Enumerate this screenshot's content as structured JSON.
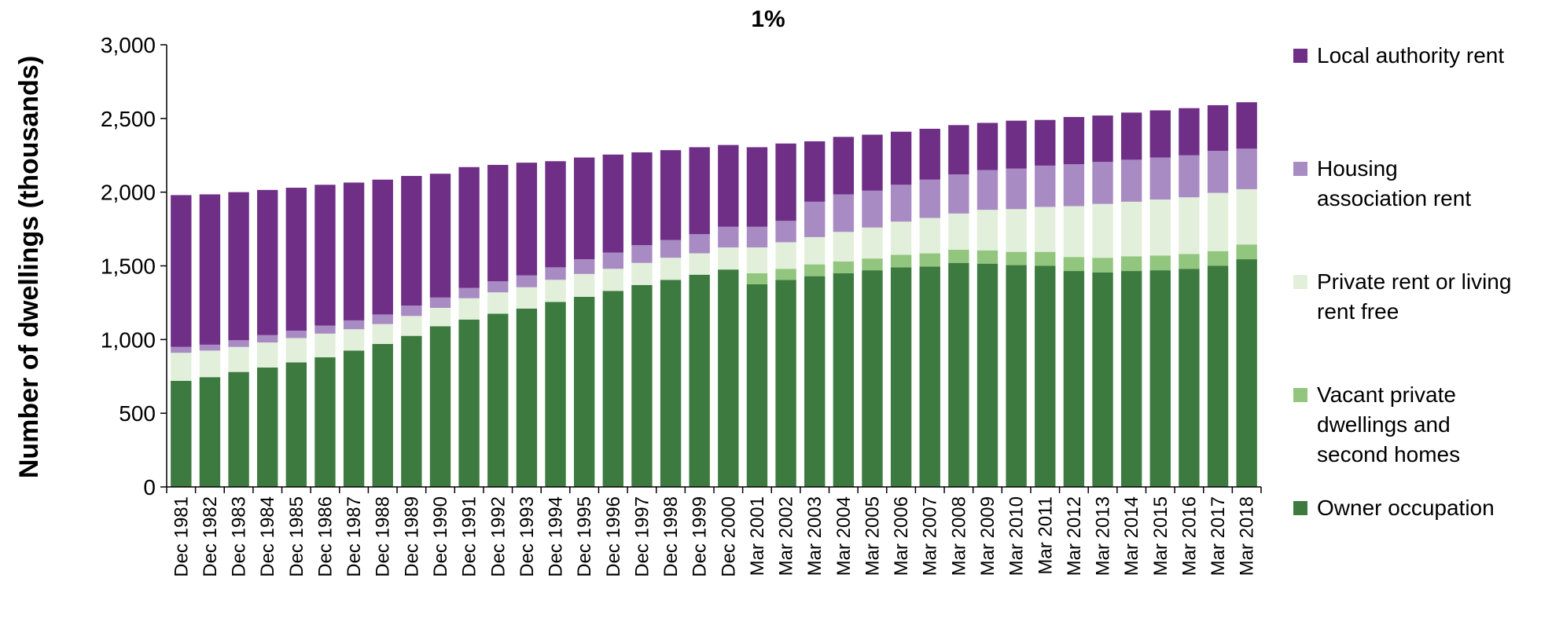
{
  "chart_data": {
    "type": "bar",
    "stacked": true,
    "title": "1%",
    "xlabel": "",
    "ylabel": "Number of dwellings (thousands)",
    "ylim": [
      0,
      3000
    ],
    "yticks": [
      0,
      500,
      1000,
      1500,
      2000,
      2500,
      3000
    ],
    "ytick_labels": [
      "0",
      "500",
      "1,000",
      "1,500",
      "2,000",
      "2,500",
      "3,000"
    ],
    "grid": false,
    "legend_position": "right",
    "categories": [
      "Dec 1981",
      "Dec 1982",
      "Dec 1983",
      "Dec 1984",
      "Dec 1985",
      "Dec 1986",
      "Dec 1987",
      "Dec 1988",
      "Dec 1989",
      "Dec 1990",
      "Dec 1991",
      "Dec 1992",
      "Dec 1993",
      "Dec 1994",
      "Dec 1995",
      "Dec 1996",
      "Dec 1997",
      "Dec 1998",
      "Dec 1999",
      "Dec 2000",
      "Mar 2001",
      "Mar 2002",
      "Mar 2003",
      "Mar 2004",
      "Mar 2005",
      "Mar 2006",
      "Mar 2007",
      "Mar 2008",
      "Mar 2009",
      "Mar 2010",
      "Mar 2011",
      "Mar 2012",
      "Mar 2013",
      "Mar 2014",
      "Mar 2015",
      "Mar 2016",
      "Mar 2017",
      "Mar 2018"
    ],
    "series": [
      {
        "name": "Owner occupation",
        "color": "#3d7a3f",
        "values": [
          720,
          745,
          780,
          810,
          845,
          880,
          925,
          970,
          1025,
          1090,
          1135,
          1175,
          1210,
          1255,
          1290,
          1330,
          1370,
          1405,
          1440,
          1475,
          1375,
          1405,
          1430,
          1450,
          1470,
          1490,
          1495,
          1520,
          1515,
          1505,
          1500,
          1465,
          1455,
          1465,
          1470,
          1480,
          1500,
          1545
        ]
      },
      {
        "name": "Vacant private dwellings and second homes",
        "color": "#92c67e",
        "values": [
          0,
          0,
          0,
          0,
          0,
          0,
          0,
          0,
          0,
          0,
          0,
          0,
          0,
          0,
          0,
          0,
          0,
          0,
          0,
          0,
          75,
          75,
          80,
          80,
          80,
          85,
          90,
          90,
          90,
          90,
          95,
          95,
          100,
          100,
          100,
          100,
          100,
          100
        ]
      },
      {
        "name": "Private rent or living rent free",
        "color": "#e2f0db",
        "values": [
          190,
          180,
          170,
          170,
          165,
          160,
          145,
          135,
          135,
          125,
          145,
          145,
          145,
          150,
          155,
          150,
          150,
          150,
          145,
          150,
          175,
          180,
          185,
          200,
          210,
          225,
          240,
          245,
          275,
          290,
          305,
          345,
          365,
          370,
          380,
          385,
          395,
          375
        ]
      },
      {
        "name": "Housing association rent",
        "color": "#a98bc4",
        "values": [
          40,
          40,
          45,
          50,
          50,
          55,
          60,
          65,
          70,
          70,
          70,
          75,
          80,
          85,
          100,
          110,
          120,
          120,
          130,
          140,
          140,
          145,
          240,
          255,
          250,
          250,
          260,
          265,
          270,
          275,
          280,
          285,
          285,
          285,
          285,
          285,
          285,
          275
        ]
      },
      {
        "name": "Local authority rent",
        "color": "#6f2f86",
        "values": [
          1030,
          1020,
          1005,
          985,
          970,
          955,
          935,
          915,
          880,
          840,
          820,
          790,
          765,
          720,
          690,
          665,
          630,
          610,
          590,
          555,
          540,
          525,
          410,
          390,
          380,
          360,
          345,
          335,
          320,
          325,
          310,
          320,
          315,
          320,
          320,
          320,
          310,
          315
        ]
      }
    ]
  }
}
